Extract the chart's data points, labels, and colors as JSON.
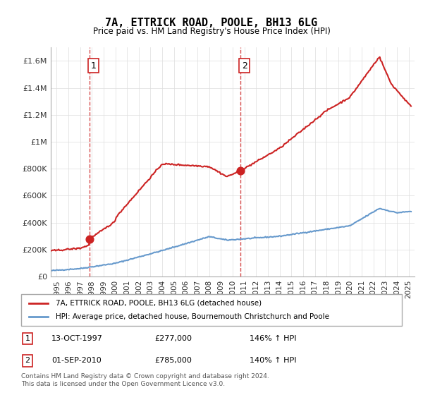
{
  "title": "7A, ETTRICK ROAD, POOLE, BH13 6LG",
  "subtitle": "Price paid vs. HM Land Registry's House Price Index (HPI)",
  "legend_line1": "7A, ETTRICK ROAD, POOLE, BH13 6LG (detached house)",
  "legend_line2": "HPI: Average price, detached house, Bournemouth Christchurch and Poole",
  "footnote": "Contains HM Land Registry data © Crown copyright and database right 2024.\nThis data is licensed under the Open Government Licence v3.0.",
  "sale1_label": "1",
  "sale1_date": "13-OCT-1997",
  "sale1_price": "£277,000",
  "sale1_hpi": "146% ↑ HPI",
  "sale2_label": "2",
  "sale2_date": "01-SEP-2010",
  "sale2_price": "£785,000",
  "sale2_hpi": "140% ↑ HPI",
  "hpi_color": "#6699cc",
  "price_color": "#cc2222",
  "sale_dot_color": "#cc2222",
  "sale1_x": 1997.79,
  "sale2_x": 2010.67,
  "sale1_y": 277000,
  "sale2_y": 785000,
  "ylim_max": 1700000,
  "xlim_min": 1994.5,
  "xlim_max": 2025.5,
  "yticks": [
    0,
    200000,
    400000,
    600000,
    800000,
    1000000,
    1200000,
    1400000,
    1600000
  ],
  "ytick_labels": [
    "£0",
    "£200K",
    "£400K",
    "£600K",
    "£800K",
    "£1M",
    "£1.2M",
    "£1.4M",
    "£1.6M"
  ],
  "xticks": [
    1995,
    1996,
    1997,
    1998,
    1999,
    2000,
    2001,
    2002,
    2003,
    2004,
    2005,
    2006,
    2007,
    2008,
    2009,
    2010,
    2011,
    2012,
    2013,
    2014,
    2015,
    2016,
    2017,
    2018,
    2019,
    2020,
    2021,
    2022,
    2023,
    2024,
    2025
  ],
  "background_color": "#ffffff",
  "grid_color": "#dddddd"
}
